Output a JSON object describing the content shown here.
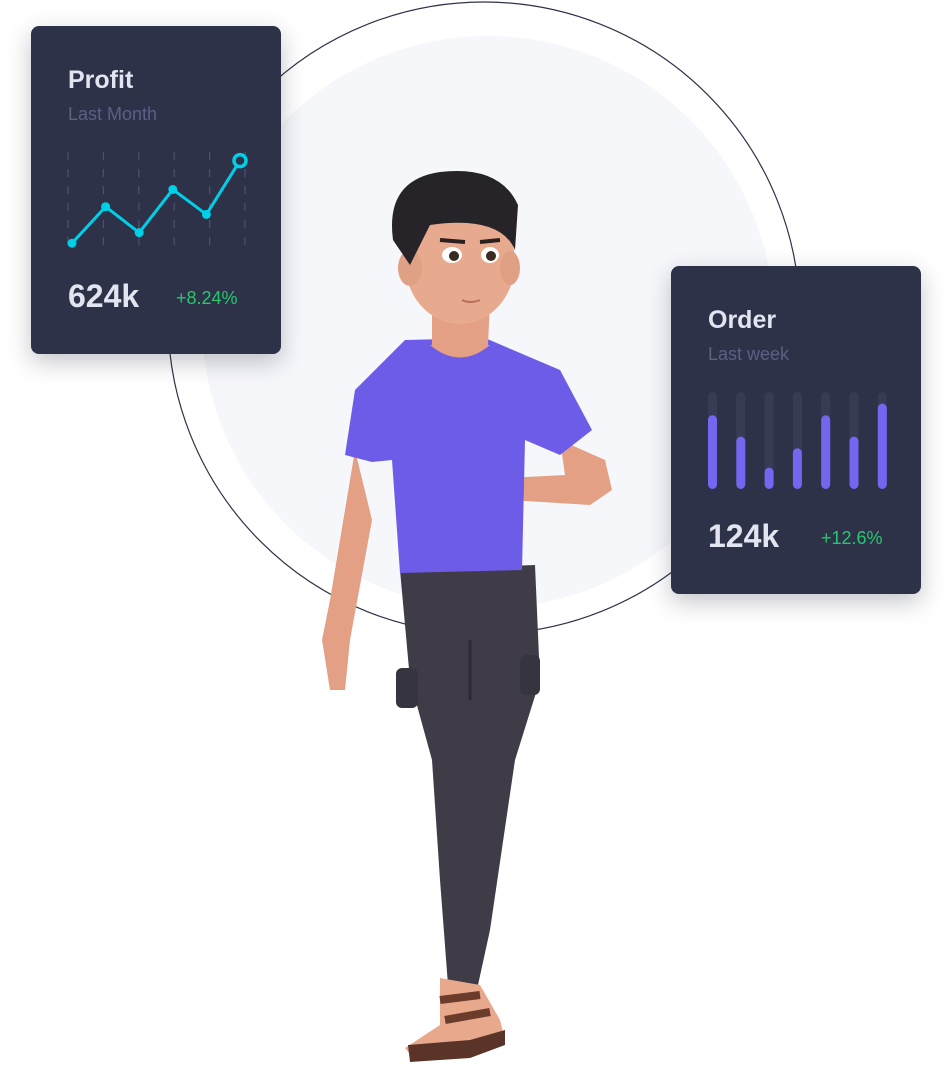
{
  "profit_card": {
    "title": "Profit",
    "subtitle": "Last Month",
    "value": "624k",
    "change": "+8.24%",
    "chart_data": {
      "type": "line",
      "values": [
        5,
        43,
        16,
        61,
        35,
        91
      ],
      "ylim": [
        0,
        100
      ],
      "grid": true,
      "color": "#00cfe8"
    }
  },
  "order_card": {
    "title": "Order",
    "subtitle": "Last week",
    "value": "124k",
    "change": "+12.6%",
    "chart_data": {
      "type": "bar",
      "values": [
        76,
        54,
        22,
        42,
        76,
        54,
        88
      ],
      "ylim": [
        0,
        100
      ],
      "color": "#7367f0"
    }
  },
  "colors": {
    "card": "#2e3248",
    "positive": "#28c76f",
    "shirt": "#6c5ce7",
    "pants": "#3f3c48"
  }
}
